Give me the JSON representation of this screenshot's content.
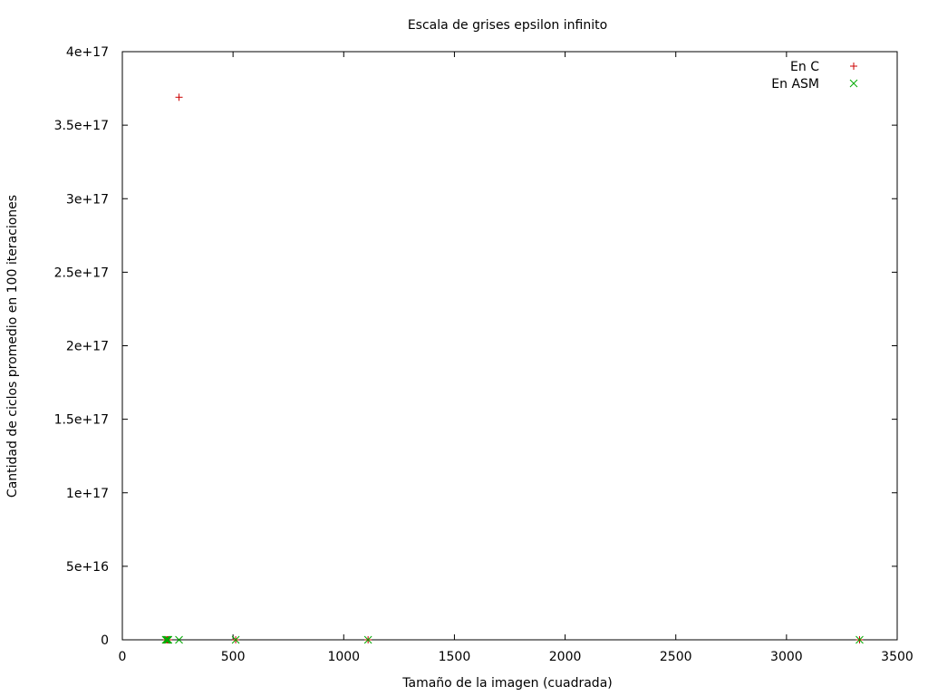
{
  "chart_data": {
    "type": "scatter",
    "title": "Escala de grises epsilon infinito",
    "xlabel": "Tamaño de la imagen (cuadrada)",
    "ylabel": "Cantidad de ciclos promedio en 100 iteraciones",
    "xlim": [
      0,
      3500
    ],
    "ylim": [
      0,
      4e+17
    ],
    "xticks": [
      0,
      500,
      1000,
      1500,
      2000,
      2500,
      3000,
      3500
    ],
    "xtick_labels": [
      "0",
      "500",
      "1000",
      "1500",
      "2000",
      "2500",
      "3000",
      "3500"
    ],
    "yticks": [
      0,
      5e+16,
      1e+17,
      1.5e+17,
      2e+17,
      2.5e+17,
      3e+17,
      3.5e+17,
      4e+17
    ],
    "ytick_labels": [
      "0",
      "5e+16",
      "1e+17",
      "1.5e+17",
      "2e+17",
      "2.5e+17",
      "3e+17",
      "3.5e+17",
      "4e+17"
    ],
    "grid": false,
    "legend_position": "top-right",
    "series": [
      {
        "name": "En C",
        "marker": "plus",
        "color": "#cc0000",
        "points": [
          {
            "x": 200,
            "y": 0
          },
          {
            "x": 204,
            "y": 0
          },
          {
            "x": 208,
            "y": 0
          },
          {
            "x": 256,
            "y": 3.69e+17
          },
          {
            "x": 512,
            "y": 0
          },
          {
            "x": 1110,
            "y": 0
          },
          {
            "x": 3330,
            "y": 0
          }
        ]
      },
      {
        "name": "En ASM",
        "marker": "cross",
        "color": "#00aa00",
        "points": [
          {
            "x": 196,
            "y": 0
          },
          {
            "x": 200,
            "y": 0
          },
          {
            "x": 204,
            "y": 0
          },
          {
            "x": 208,
            "y": 0
          },
          {
            "x": 256,
            "y": 0
          },
          {
            "x": 512,
            "y": 0
          },
          {
            "x": 1110,
            "y": 0
          },
          {
            "x": 3330,
            "y": 0
          }
        ]
      }
    ]
  }
}
